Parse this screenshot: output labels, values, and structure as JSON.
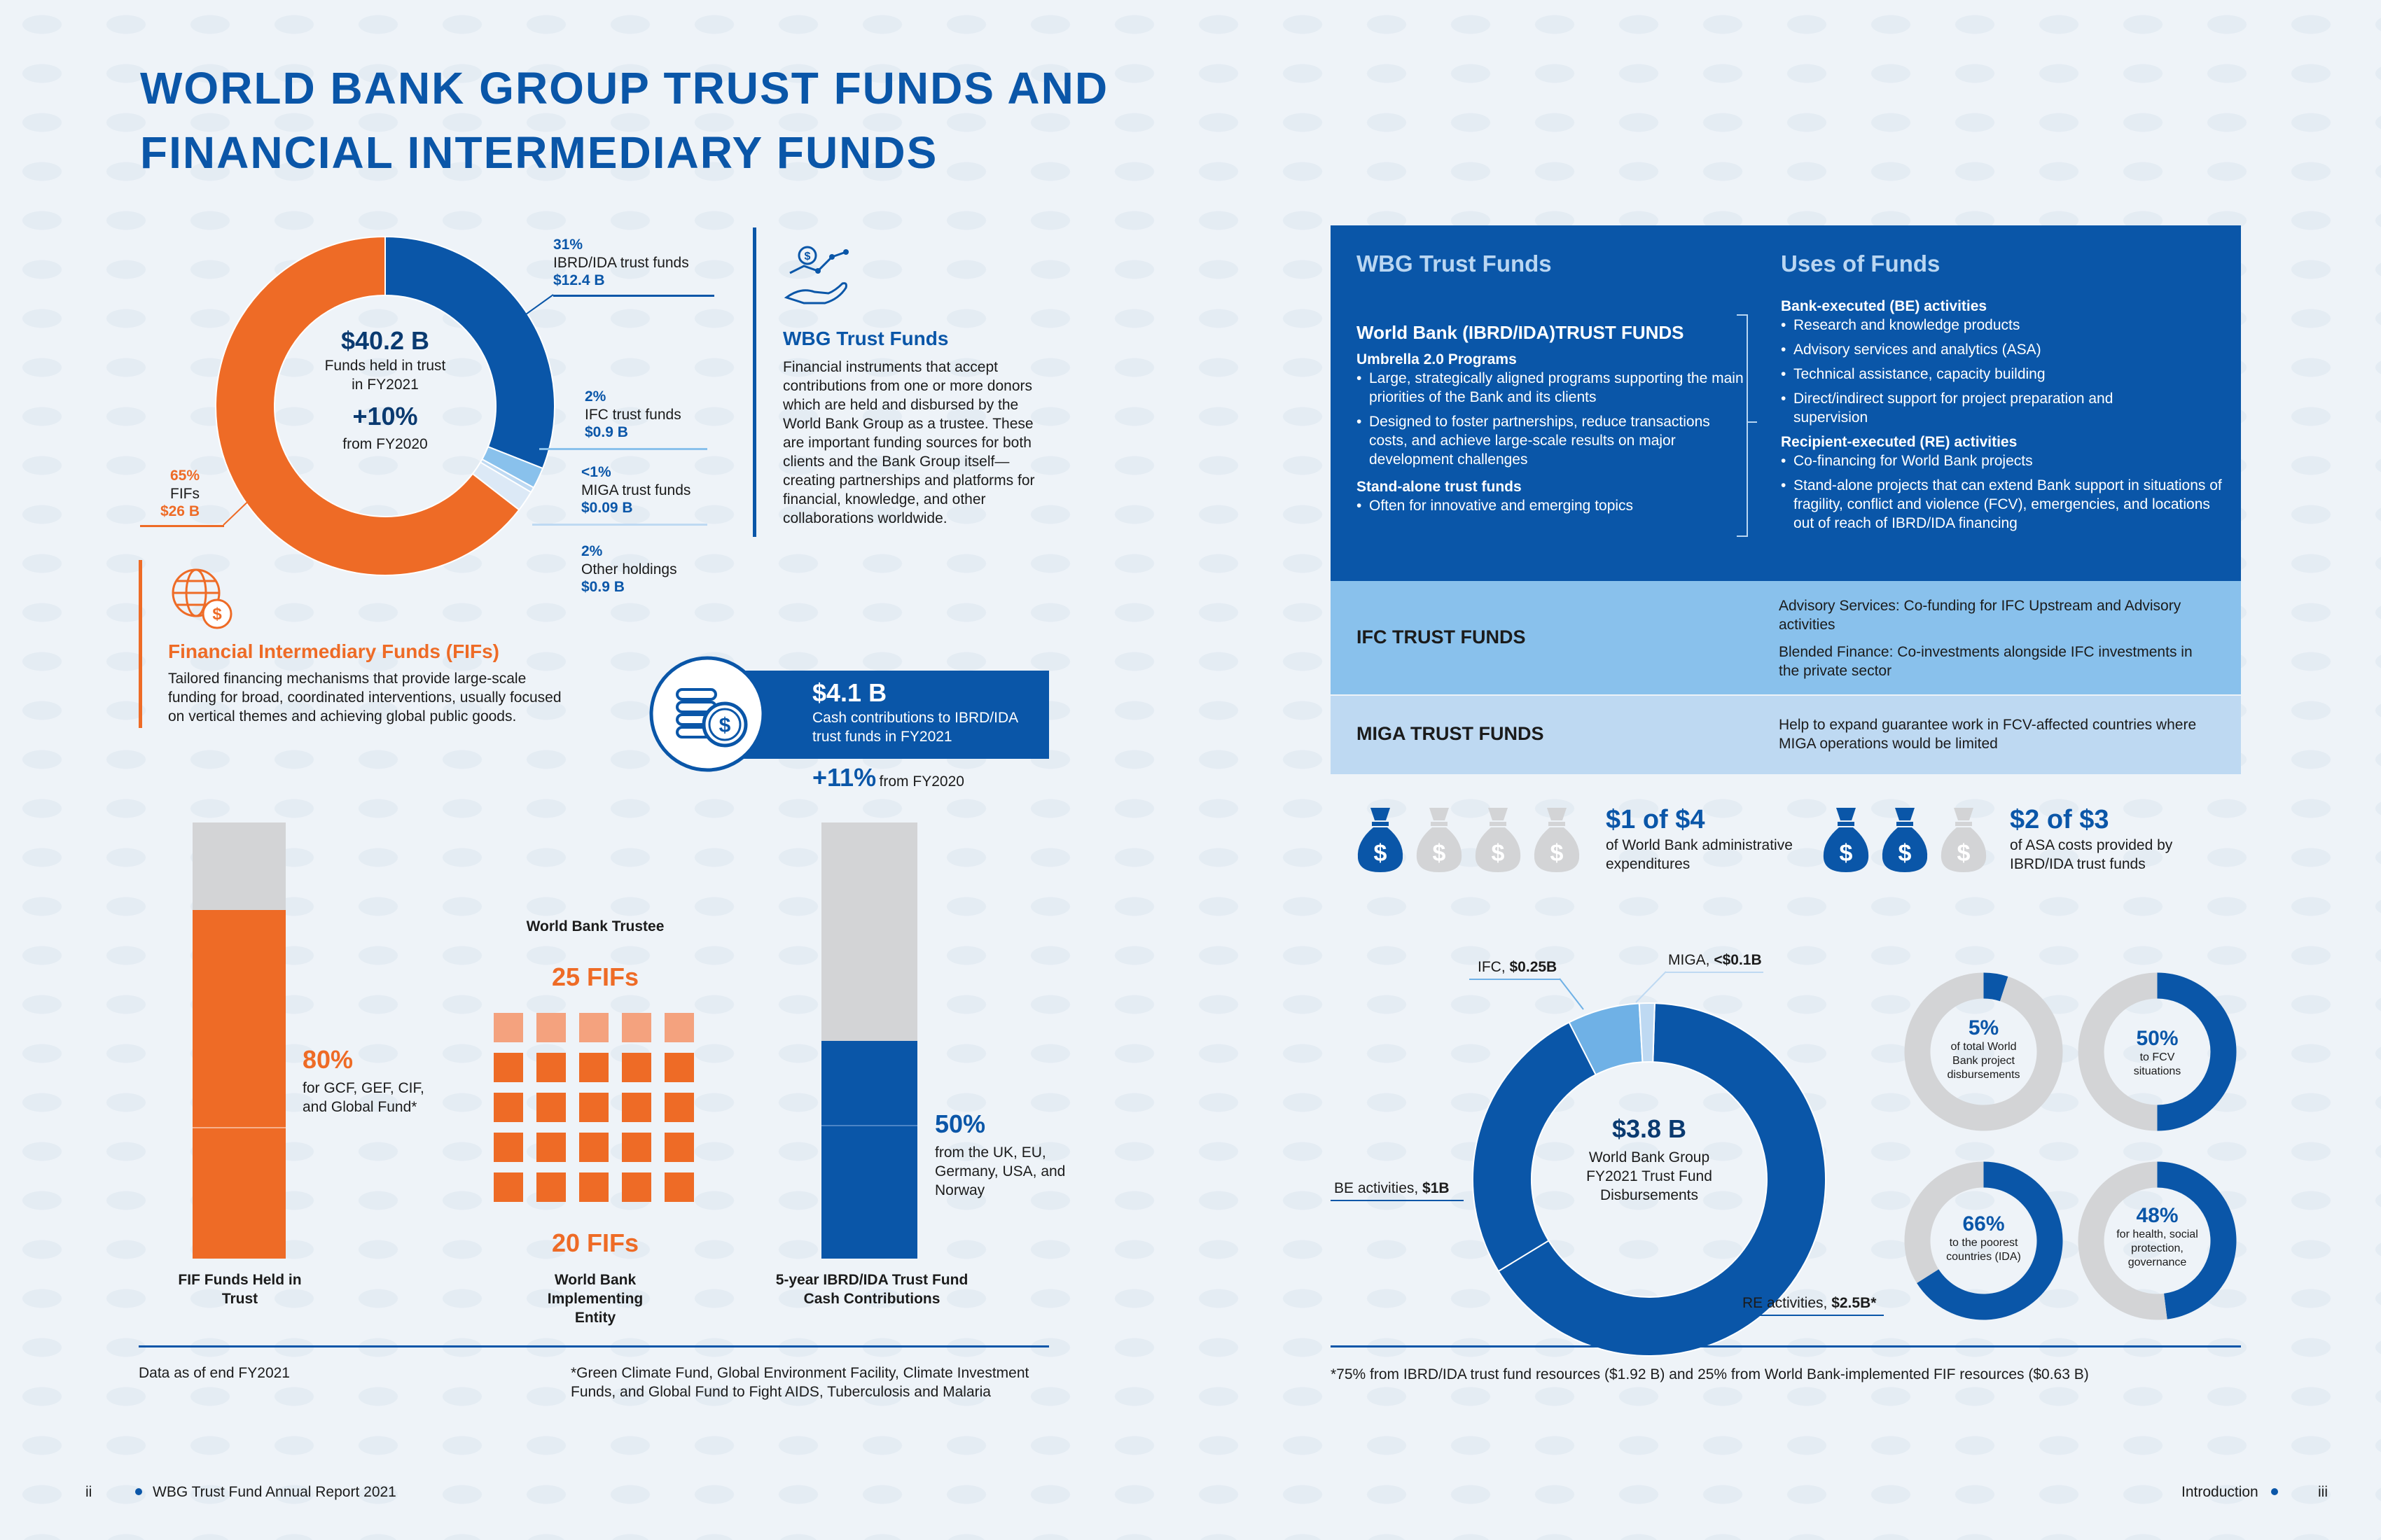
{
  "title": "WORLD BANK GROUP TRUST FUNDS AND FINANCIAL INTERMEDIARY FUNDS",
  "donut1": {
    "center_value": "$40.2 B",
    "center_label1": "Funds held in trust",
    "center_label2": "in FY2021",
    "growth": "+10%",
    "growth_label": "from FY2020",
    "segments": [
      {
        "pct": "31%",
        "label": "IBRD/IDA trust funds",
        "value": "$12.4 B",
        "share": 31,
        "color": "#0a56a8"
      },
      {
        "pct": "2%",
        "label": "IFC trust funds",
        "value": "$0.9 B",
        "share": 2,
        "color": "#89c1ec"
      },
      {
        "pct": "<1%",
        "label": "MIGA trust funds",
        "value": "$0.09 B",
        "share": 0.5,
        "color": "#bed9f2"
      },
      {
        "pct": "2%",
        "label": "Other holdings",
        "value": "$0.9 B",
        "share": 2,
        "color": "#dce9f6"
      },
      {
        "pct": "65%",
        "label": "FIFs",
        "value": "$26 B",
        "share": 64.5,
        "color": "#ee6b26"
      }
    ]
  },
  "wbg_tf": {
    "heading": "WBG Trust Funds",
    "text": "Financial instruments that accept contributions from one or more donors which are held and disbursed by the World Bank Group as a trustee. These are important funding sources for both clients and the Bank Group itself—creating partnerships and platforms for financial, knowledge, and other collaborations worldwide."
  },
  "fif": {
    "heading": "Financial Intermediary Funds (FIFs)",
    "text": "Tailored financing mechanisms that provide large-scale funding for broad, coordinated interventions, usually focused on vertical themes and achieving global public goods."
  },
  "cash": {
    "value": "$4.1 B",
    "label": "Cash contributions to IBRD/IDA trust funds in FY2021",
    "growth": "+11%",
    "growth_label": "from FY2020"
  },
  "bar1": {
    "pct": "80%",
    "label": "for GCF, GEF, CIF, and Global Fund*",
    "caption": "FIF Funds Held in Trust",
    "share": 80
  },
  "fifs": {
    "top_label": "World Bank Trustee",
    "top_count": "25 FIFs",
    "bottom_count": "20 FIFs",
    "bottom_label": "World Bank Implementing Entity"
  },
  "bar2": {
    "pct": "50%",
    "label": "from the UK, EU, Germany, USA, and Norway",
    "caption": "5-year IBRD/IDA Trust Fund Cash Contributions",
    "share": 50
  },
  "footer_left": {
    "note": "Data as of end FY2021",
    "footnote": "*Green Climate Fund, Global Environment Facility, Climate Investment Funds, and Global Fund to Fight AIDS, Tuberculosis and Malaria",
    "page": "ii",
    "report": "WBG Trust Fund Annual Report 2021"
  },
  "table": {
    "col1_head": "WBG Trust Funds",
    "col2_head": "Uses of Funds",
    "wb_title": "World Bank (IBRD/IDA)TRUST FUNDS",
    "umbrella": "Umbrella 2.0 Programs",
    "umbrella_items": [
      "Large, strategically aligned programs supporting the main priorities of the Bank and its clients",
      "Designed to foster partnerships, reduce transactions costs, and achieve large-scale results on major development challenges"
    ],
    "standalone": "Stand-alone trust funds",
    "standalone_items": [
      "Often for innovative and emerging topics"
    ],
    "be_title": "Bank-executed (BE) activities",
    "be_items": [
      "Research and knowledge products",
      "Advisory services and analytics (ASA)",
      "Technical assistance, capacity building",
      "Direct/indirect support for project preparation and supervision"
    ],
    "re_title": "Recipient-executed (RE) activities",
    "re_items": [
      "Co-financing for World Bank projects",
      "Stand-alone projects that can extend Bank support in situations of fragility, conflict and violence (FCV), emergencies, and locations out of reach of IBRD/IDA financing"
    ],
    "ifc_title": "IFC TRUST FUNDS",
    "ifc_use1": "Advisory Services: Co-funding for IFC Upstream and Advisory activities",
    "ifc_use2": "Blended Finance: Co-investments alongside IFC investments in the private sector",
    "miga_title": "MIGA TRUST FUNDS",
    "miga_use": "Help to expand guarantee work in FCV-affected countries where MIGA operations would be limited"
  },
  "bags": {
    "left_value": "$1 of $4",
    "left_label": "of World Bank administrative expenditures",
    "left_filled": 1,
    "left_total": 4,
    "right_value": "$2 of $3",
    "right_label": "of ASA costs provided by IBRD/IDA trust funds",
    "right_filled": 2,
    "right_total": 3,
    "dollar": "$"
  },
  "donut2": {
    "center_value": "$3.8 B",
    "center_label": "World Bank Group FY2021 Trust Fund Disbursements",
    "labels": [
      {
        "prefix": "IFC, ",
        "value": "$0.25B",
        "share": 6.6,
        "color": "#6fb1e6"
      },
      {
        "prefix": "MIGA, ",
        "value": "<$0.1B",
        "share": 1.4,
        "color": "#bed9f2"
      },
      {
        "prefix": "RE activities, ",
        "value": "$2.5B*",
        "share": 65.8,
        "color": "#0a56a8"
      },
      {
        "prefix": "BE activities, ",
        "value": "$1B",
        "share": 26.2,
        "color": "#0a56a8"
      }
    ]
  },
  "small_donuts": [
    {
      "pct": "5%",
      "label": "of total World Bank project disbursements",
      "share": 5
    },
    {
      "pct": "50%",
      "label": "to FCV situations",
      "share": 50
    },
    {
      "pct": "66%",
      "label": "to the poorest countries (IDA)",
      "share": 66
    },
    {
      "pct": "48%",
      "label": "for health, social protection, governance",
      "share": 48
    }
  ],
  "footer_right": {
    "footnote": "*75% from IBRD/IDA trust fund resources ($1.92 B) and 25% from World Bank-implemented FIF resources ($0.63 B)",
    "section": "Introduction",
    "page": "iii"
  }
}
